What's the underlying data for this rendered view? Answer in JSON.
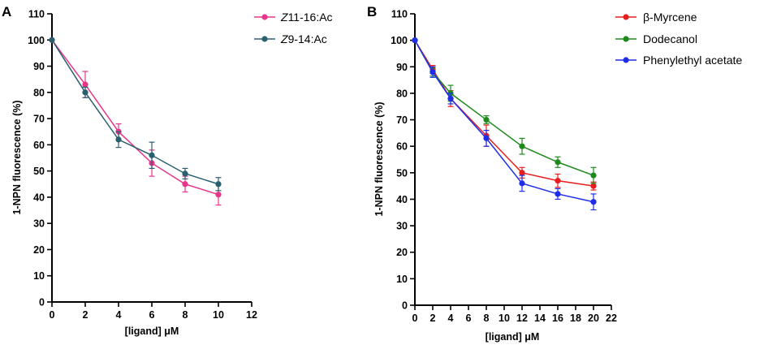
{
  "chart_data": [
    {
      "type": "line",
      "panel": "A",
      "xlabel_text": "[ligand] ",
      "xlabel_unit": "μM",
      "ylabel": "1-NPN fluorescence (%)",
      "xlim": [
        0,
        12
      ],
      "ylim": [
        0,
        110
      ],
      "xticks": [
        0,
        2,
        4,
        6,
        8,
        10,
        12
      ],
      "yticks": [
        0,
        10,
        20,
        30,
        40,
        50,
        60,
        70,
        80,
        90,
        100,
        110
      ],
      "legend_position": "top-right",
      "series": [
        {
          "name_italic": "Z",
          "name_rest": "11-16:Ac",
          "color": "#e8358a",
          "x": [
            0,
            2,
            4,
            6,
            8,
            10
          ],
          "values": [
            100,
            83,
            65,
            53,
            45,
            41
          ],
          "errors": [
            0,
            5,
            3,
            5,
            3,
            4
          ]
        },
        {
          "name_italic": "Z",
          "name_rest": "9-14:Ac",
          "color": "#2a5f70",
          "x": [
            0,
            2,
            4,
            6,
            8,
            10
          ],
          "values": [
            100,
            80,
            62,
            56,
            49,
            45
          ],
          "errors": [
            0,
            2,
            3,
            5,
            2,
            2.5
          ]
        }
      ]
    },
    {
      "type": "line",
      "panel": "B",
      "xlabel_text": "[ligand] ",
      "xlabel_unit": "μM",
      "ylabel": "1-NPN fluorescence (%)",
      "xlim": [
        0,
        22
      ],
      "ylim": [
        0,
        110
      ],
      "xticks": [
        0,
        2,
        4,
        6,
        8,
        10,
        12,
        14,
        16,
        18,
        20,
        22
      ],
      "yticks": [
        0,
        10,
        20,
        30,
        40,
        50,
        60,
        70,
        80,
        90,
        100,
        110
      ],
      "legend_position": "top-right",
      "series": [
        {
          "name_italic": "",
          "name_rest": "β-Myrcene",
          "color": "#e81e1e",
          "x": [
            0,
            2,
            4,
            8,
            12,
            16,
            20
          ],
          "values": [
            100,
            89,
            78,
            64,
            50,
            47,
            45
          ],
          "errors": [
            0,
            1.5,
            3,
            4,
            2,
            2.5,
            1.5
          ]
        },
        {
          "name_italic": "",
          "name_rest": "Dodecanol",
          "color": "#1e8a1e",
          "x": [
            0,
            2,
            4,
            8,
            12,
            16,
            20
          ],
          "values": [
            100,
            88,
            80,
            70,
            60,
            54,
            49
          ],
          "errors": [
            0,
            1.5,
            3,
            1.5,
            3,
            2,
            3
          ]
        },
        {
          "name_italic": "",
          "name_rest": "Phenylethyl acetate",
          "color": "#1e2ee8",
          "x": [
            0,
            2,
            4,
            8,
            12,
            16,
            20
          ],
          "values": [
            100,
            88,
            78,
            63,
            46,
            42,
            39
          ],
          "errors": [
            0,
            2,
            2,
            3,
            3,
            2,
            3
          ]
        }
      ]
    }
  ]
}
